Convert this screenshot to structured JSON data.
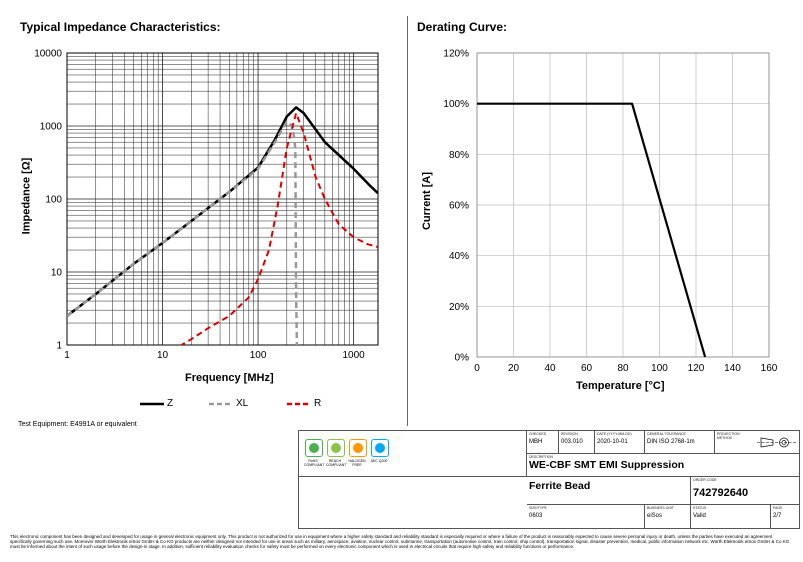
{
  "impedance_chart": {
    "title": "Typical Impedance Characteristics:",
    "xlabel": "Frequency [MHz]",
    "ylabel": "Impedance [Ω]",
    "xticks": [
      "1",
      "10",
      "100",
      "1000"
    ],
    "yticks": [
      "10000",
      "1000",
      "100",
      "10",
      "1"
    ],
    "legend": {
      "z": "Z",
      "xl": "XL",
      "r": "R"
    },
    "test_equipment": "Test Equipment: E4991A or equivalent"
  },
  "derating_chart": {
    "title": "Derating Curve:",
    "xlabel": "Temperature [°C]",
    "ylabel": "Current [A]",
    "xticks": [
      "0",
      "20",
      "40",
      "60",
      "80",
      "100",
      "120",
      "140",
      "160"
    ],
    "yticks": [
      "120%",
      "100%",
      "80%",
      "60%",
      "40%",
      "20%",
      "0%"
    ]
  },
  "chart_data": [
    {
      "type": "line",
      "title": "Typical Impedance Characteristics:",
      "xlabel": "Frequency [MHz]",
      "ylabel": "Impedance [Ω]",
      "xscale": "log",
      "yscale": "log",
      "xlim": [
        1,
        1800
      ],
      "ylim": [
        1,
        10000
      ],
      "grid": true,
      "legend": "bottom",
      "series": [
        {
          "name": "Z",
          "color": "#000000",
          "style": "solid",
          "x": [
            1,
            2,
            5,
            10,
            20,
            50,
            100,
            150,
            200,
            250,
            300,
            500,
            1000,
            1500,
            1800
          ],
          "y": [
            2.5,
            5,
            13,
            25,
            50,
            125,
            270,
            650,
            1350,
            1800,
            1500,
            600,
            260,
            150,
            120
          ]
        },
        {
          "name": "XL",
          "color": "#999999",
          "style": "dashed",
          "x": [
            1,
            2,
            5,
            10,
            20,
            50,
            100,
            150,
            200,
            230,
            245,
            250,
            255
          ],
          "y": [
            2.5,
            5,
            13,
            25,
            50,
            125,
            260,
            600,
            1150,
            1000,
            500,
            5,
            1
          ]
        },
        {
          "name": "R",
          "color": "#dd0000",
          "style": "dashed",
          "x": [
            10,
            20,
            30,
            50,
            80,
            100,
            130,
            160,
            200,
            250,
            300,
            400,
            500,
            700,
            1000,
            1400,
            1800
          ],
          "y": [
            0.7,
            1.2,
            1.7,
            2.5,
            4.5,
            8,
            20,
            80,
            500,
            1500,
            800,
            200,
            100,
            45,
            30,
            24,
            22
          ]
        }
      ]
    },
    {
      "type": "line",
      "title": "Derating Curve:",
      "xlabel": "Temperature [°C]",
      "ylabel": "Current [A]",
      "xlim": [
        0,
        160
      ],
      "ylim": [
        0,
        120
      ],
      "grid": true,
      "series": [
        {
          "color": "#000000",
          "x": [
            0,
            85,
            125
          ],
          "y": [
            100,
            100,
            0
          ]
        }
      ]
    }
  ],
  "title_block": {
    "badges": [
      {
        "color": "#4caf50",
        "label": "RoHS COMPLIANT"
      },
      {
        "color": "#8bc34a",
        "label": "REACH COMPLIANT"
      },
      {
        "color": "#ff9800",
        "label": "HALOGEN FREE"
      },
      {
        "color": "#03a9f4",
        "label": "AEC Q200"
      }
    ],
    "checked_label": "CHECKED",
    "checked": "MBH",
    "revision_label": "REVISION",
    "revision": "003.010",
    "date_label": "DATE (YYYY-MM-DD)",
    "date": "2020-10-01",
    "tolerance_label": "GENERAL TOLERANCE",
    "tolerance": "DIN ISO 2768-1m",
    "projection_label": "PROJECTION METHOD",
    "description_label": "DESCRIPTION",
    "description_line1": "WE-CBF SMT EMI Suppression",
    "description_line2": "Ferrite Bead",
    "order_code_label": "ORDER CODE",
    "order_code": "742792640",
    "size_label": "SIZE/TYPE",
    "size": "0603",
    "business_unit_label": "BUSINESS UNIT",
    "business_unit": "eiSos",
    "status_label": "STATUS",
    "status": "Valid",
    "page_label": "PAGE",
    "page": "2/7"
  },
  "disclaimer": "This electronic component has been designed and developed for usage in general electronic equipment only. This product is not authorized for use in equipment where a higher safety standard and reliability standard is especially required or where a failure of the product is reasonably expected to cause severe personal injury or death, unless the parties have executed an agreement specifically governing such use. Moreover Würth Elektronik eiSos GmbH & Co KG products are neither designed nor intended for use in areas such as military, aerospace, aviation, nuclear control, submarine, transportation (automotive control, train control, ship control), transportation signal, disaster prevention, medical, public information network etc. Würth Elektronik eiSos GmbH & Co KG must be informed about the intent of such usage before the design-in stage. In addition, sufficient reliability evaluation checks for safety must be performed on every electronic component which is used in electrical circuits that require high safety and reliability functions or performance."
}
